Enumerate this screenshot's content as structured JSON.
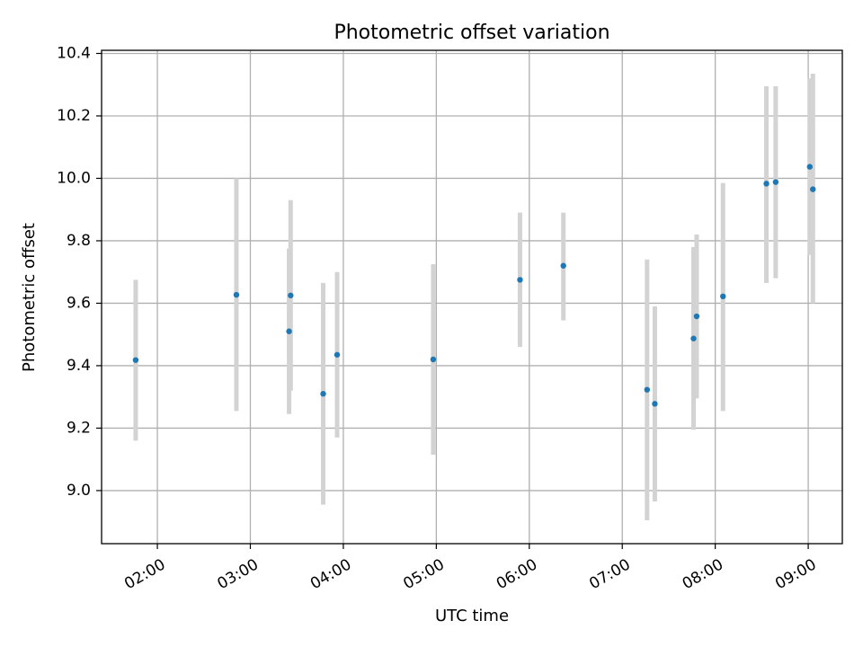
{
  "chart_data": {
    "type": "scatter",
    "title": "Photometric offset variation",
    "xlabel": "UTC time",
    "ylabel": "Photometric offset",
    "x_ticks": [
      "02:00",
      "03:00",
      "04:00",
      "05:00",
      "06:00",
      "07:00",
      "08:00",
      "09:00"
    ],
    "y_ticks": [
      "9.0",
      "9.2",
      "9.4",
      "9.6",
      "9.8",
      "10.0",
      "10.2",
      "10.4"
    ],
    "xlim": [
      "01:24",
      "09:22"
    ],
    "ylim": [
      8.83,
      10.41
    ],
    "grid": true,
    "colors": {
      "point": "#1f77b4",
      "errorbar": "#d3d3d3"
    },
    "points": [
      {
        "time": "01:46",
        "value": 9.418,
        "lower": 9.16,
        "upper": 9.675
      },
      {
        "time": "02:51",
        "value": 9.627,
        "lower": 9.255,
        "upper": 10.0
      },
      {
        "time": "03:25",
        "value": 9.51,
        "lower": 9.245,
        "upper": 9.775
      },
      {
        "time": "03:26",
        "value": 9.625,
        "lower": 9.32,
        "upper": 9.93
      },
      {
        "time": "03:47",
        "value": 9.31,
        "lower": 8.955,
        "upper": 9.665
      },
      {
        "time": "03:56",
        "value": 9.435,
        "lower": 9.17,
        "upper": 9.7
      },
      {
        "time": "04:58",
        "value": 9.42,
        "lower": 9.115,
        "upper": 9.725
      },
      {
        "time": "05:54",
        "value": 9.675,
        "lower": 9.46,
        "upper": 9.89
      },
      {
        "time": "06:22",
        "value": 9.72,
        "lower": 9.545,
        "upper": 9.89
      },
      {
        "time": "07:16",
        "value": 9.323,
        "lower": 8.905,
        "upper": 9.74
      },
      {
        "time": "07:21",
        "value": 9.278,
        "lower": 8.965,
        "upper": 9.59
      },
      {
        "time": "07:46",
        "value": 9.487,
        "lower": 9.195,
        "upper": 9.78
      },
      {
        "time": "07:48",
        "value": 9.558,
        "lower": 9.295,
        "upper": 9.82
      },
      {
        "time": "08:05",
        "value": 9.622,
        "lower": 9.255,
        "upper": 9.985
      },
      {
        "time": "08:33",
        "value": 9.983,
        "lower": 9.665,
        "upper": 10.295
      },
      {
        "time": "08:39",
        "value": 9.988,
        "lower": 9.68,
        "upper": 10.295
      },
      {
        "time": "09:01",
        "value": 10.037,
        "lower": 9.755,
        "upper": 10.32
      },
      {
        "time": "09:03",
        "value": 9.965,
        "lower": 9.6,
        "upper": 10.335
      }
    ]
  }
}
